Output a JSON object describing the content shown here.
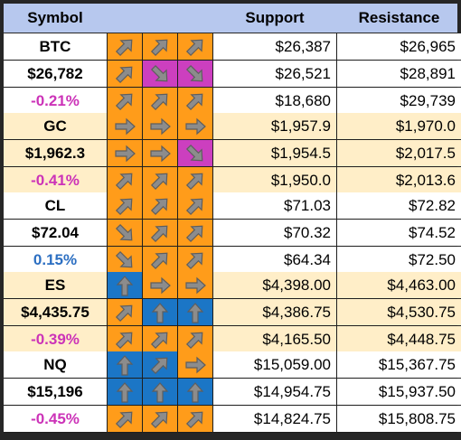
{
  "colors": {
    "header_bg": "#b7c8ee",
    "row_white": "#ffffff",
    "row_cream": "#ffeec8",
    "up": "#ff9c1a",
    "down": "#cc3fbf",
    "strong_up": "#1b76c6",
    "neg_text": "#cc33b8",
    "pos_text": "#2c6fc2"
  },
  "header": {
    "symbol": "Symbol",
    "support": "Support",
    "resistance": "Resistance"
  },
  "groups": [
    {
      "symbol": "BTC",
      "price": "$26,782",
      "change": "-0.21%",
      "change_dir": "neg",
      "bg": "row_white",
      "arrows": [
        [
          {
            "icon": "diag-up",
            "color": "up"
          },
          {
            "icon": "diag-up",
            "color": "up"
          },
          {
            "icon": "diag-up",
            "color": "up"
          }
        ],
        [
          {
            "icon": "diag-up",
            "color": "up"
          },
          {
            "icon": "diag-down",
            "color": "down"
          },
          {
            "icon": "diag-down",
            "color": "down"
          }
        ],
        [
          {
            "icon": "diag-up",
            "color": "up"
          },
          {
            "icon": "diag-up",
            "color": "up"
          },
          {
            "icon": "diag-up",
            "color": "up"
          }
        ]
      ],
      "support": [
        "$26,387",
        "$26,521",
        "$18,680"
      ],
      "resistance": [
        "$26,965",
        "$28,891",
        "$29,739"
      ]
    },
    {
      "symbol": "GC",
      "price": "$1,962.3",
      "change": "-0.41%",
      "change_dir": "neg",
      "bg": "row_cream",
      "arrows": [
        [
          {
            "icon": "right",
            "color": "up"
          },
          {
            "icon": "right",
            "color": "up"
          },
          {
            "icon": "right",
            "color": "up"
          }
        ],
        [
          {
            "icon": "right",
            "color": "up"
          },
          {
            "icon": "right",
            "color": "up"
          },
          {
            "icon": "diag-down",
            "color": "down"
          }
        ],
        [
          {
            "icon": "diag-up",
            "color": "up"
          },
          {
            "icon": "diag-up",
            "color": "up"
          },
          {
            "icon": "diag-up",
            "color": "up"
          }
        ]
      ],
      "support": [
        "$1,957.9",
        "$1,954.5",
        "$1,950.0"
      ],
      "resistance": [
        "$1,970.0",
        "$2,017.5",
        "$2,013.6"
      ]
    },
    {
      "symbol": "CL",
      "price": "$72.04",
      "change": "0.15%",
      "change_dir": "pos",
      "bg": "row_white",
      "arrows": [
        [
          {
            "icon": "diag-up",
            "color": "up"
          },
          {
            "icon": "diag-up",
            "color": "up"
          },
          {
            "icon": "diag-up",
            "color": "up"
          }
        ],
        [
          {
            "icon": "diag-down",
            "color": "up"
          },
          {
            "icon": "diag-up",
            "color": "up"
          },
          {
            "icon": "diag-up",
            "color": "up"
          }
        ],
        [
          {
            "icon": "diag-down",
            "color": "up"
          },
          {
            "icon": "diag-up",
            "color": "up"
          },
          {
            "icon": "diag-up",
            "color": "up"
          }
        ]
      ],
      "support": [
        "$71.03",
        "$70.32",
        "$64.34"
      ],
      "resistance": [
        "$72.82",
        "$74.52",
        "$72.50"
      ]
    },
    {
      "symbol": "ES",
      "price": "$4,435.75",
      "change": "-0.39%",
      "change_dir": "neg",
      "bg": "row_cream",
      "arrows": [
        [
          {
            "icon": "up",
            "color": "strong_up"
          },
          {
            "icon": "right",
            "color": "up"
          },
          {
            "icon": "right",
            "color": "up"
          }
        ],
        [
          {
            "icon": "diag-up",
            "color": "up"
          },
          {
            "icon": "up",
            "color": "strong_up"
          },
          {
            "icon": "up",
            "color": "strong_up"
          }
        ],
        [
          {
            "icon": "diag-up",
            "color": "up"
          },
          {
            "icon": "diag-up",
            "color": "up"
          },
          {
            "icon": "diag-up",
            "color": "up"
          }
        ]
      ],
      "support": [
        "$4,398.00",
        "$4,386.75",
        "$4,165.50"
      ],
      "resistance": [
        "$4,463.00",
        "$4,530.75",
        "$4,448.75"
      ]
    },
    {
      "symbol": "NQ",
      "price": "$15,196",
      "change": "-0.45%",
      "change_dir": "neg",
      "bg": "row_white",
      "arrows": [
        [
          {
            "icon": "up",
            "color": "strong_up"
          },
          {
            "icon": "diag-up",
            "color": "strong_up"
          },
          {
            "icon": "right",
            "color": "up"
          }
        ],
        [
          {
            "icon": "up",
            "color": "strong_up"
          },
          {
            "icon": "up",
            "color": "strong_up"
          },
          {
            "icon": "up",
            "color": "strong_up"
          }
        ],
        [
          {
            "icon": "diag-up",
            "color": "up"
          },
          {
            "icon": "diag-up",
            "color": "up"
          },
          {
            "icon": "diag-up",
            "color": "up"
          }
        ]
      ],
      "support": [
        "$15,059.00",
        "$14,954.75",
        "$14,824.75"
      ],
      "resistance": [
        "$15,367.75",
        "$15,937.50",
        "$15,808.75"
      ]
    }
  ]
}
